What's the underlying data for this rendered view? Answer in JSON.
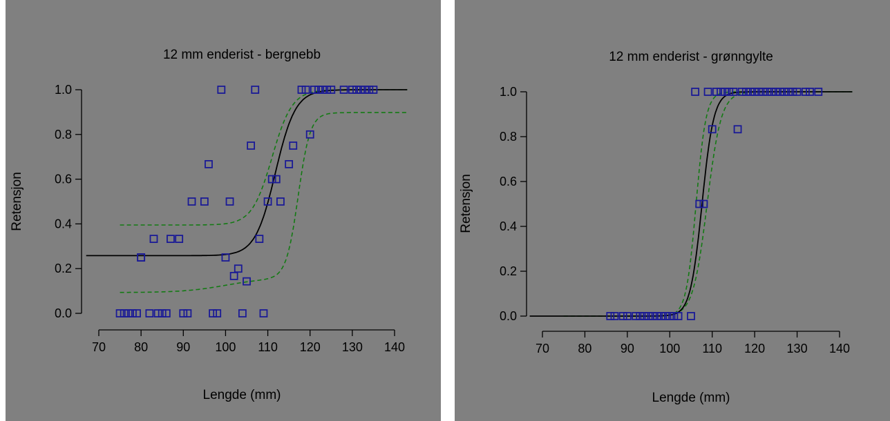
{
  "chart_data": [
    {
      "type": "scatter",
      "title": "12 mm enderist - bergnebb",
      "xlabel": "Lengde (mm)",
      "ylabel": "Retensjon",
      "xlim": [
        70,
        140
      ],
      "ylim": [
        0,
        1
      ],
      "xticks": [
        70,
        80,
        90,
        100,
        110,
        120,
        130,
        140
      ],
      "yticks": [
        "0.0",
        "0.2",
        "0.4",
        "0.6",
        "0.8",
        "1.0"
      ],
      "points": [
        [
          75,
          0
        ],
        [
          76,
          0
        ],
        [
          77,
          0
        ],
        [
          78,
          0
        ],
        [
          79,
          0
        ],
        [
          82,
          0
        ],
        [
          84,
          0
        ],
        [
          85,
          0
        ],
        [
          86,
          0
        ],
        [
          90,
          0
        ],
        [
          91,
          0
        ],
        [
          97,
          0
        ],
        [
          98,
          0
        ],
        [
          104,
          0
        ],
        [
          109,
          0
        ],
        [
          80,
          0.25
        ],
        [
          80,
          0.25
        ],
        [
          83,
          0.333
        ],
        [
          87,
          0.333
        ],
        [
          89,
          0.333
        ],
        [
          92,
          0.5
        ],
        [
          95,
          0.5
        ],
        [
          101,
          0.5
        ],
        [
          110,
          0.5
        ],
        [
          113,
          0.5
        ],
        [
          96,
          0.667
        ],
        [
          106,
          0.75
        ],
        [
          111,
          0.6
        ],
        [
          112,
          0.6
        ],
        [
          115,
          0.667
        ],
        [
          116,
          0.75
        ],
        [
          120,
          0.8
        ],
        [
          99,
          1
        ],
        [
          107,
          1
        ],
        [
          100,
          0.25
        ],
        [
          102,
          0.167
        ],
        [
          103,
          0.2
        ],
        [
          105,
          0.143
        ],
        [
          108,
          0.333
        ],
        [
          118,
          1
        ],
        [
          119,
          1
        ],
        [
          121,
          1
        ],
        [
          122,
          1
        ],
        [
          123,
          1
        ],
        [
          124,
          1
        ],
        [
          125,
          1
        ],
        [
          128,
          1
        ],
        [
          130,
          1
        ],
        [
          131,
          1
        ],
        [
          132,
          1
        ],
        [
          133,
          1
        ],
        [
          134,
          1
        ],
        [
          135,
          1
        ]
      ],
      "fit": {
        "lower": 0.258,
        "upper": 1.0,
        "l50": 111.8,
        "slope": 0.42,
        "x_range": [
          67,
          143
        ]
      },
      "ci_upper": {
        "lower": 0.395,
        "upper": 1.0,
        "l50": 111.0,
        "slope": 0.42,
        "x_range": [
          75,
          143
        ]
      },
      "ci_lower": {
        "x_range": [
          75,
          143
        ],
        "components": [
          {
            "weight": 0.065,
            "l50": 100.0,
            "slope": 0.2
          },
          {
            "weight": 0.74,
            "l50": 117.2,
            "slope": 0.7
          }
        ],
        "base": 0.093
      },
      "series_colors": {
        "points": "#1a1a96",
        "fit": "#000000",
        "ci": "#137a13"
      }
    },
    {
      "type": "scatter",
      "title": "12 mm enderist - grønngylte",
      "xlabel": "Lengde (mm)",
      "ylabel": "Retensjon",
      "xlim": [
        70,
        140
      ],
      "ylim": [
        0,
        1
      ],
      "xticks": [
        70,
        80,
        90,
        100,
        110,
        120,
        130,
        140
      ],
      "yticks": [
        "0.0",
        "0.2",
        "0.4",
        "0.6",
        "0.8",
        "1.0"
      ],
      "points": [
        [
          86,
          0
        ],
        [
          87,
          0
        ],
        [
          89,
          0
        ],
        [
          90,
          0
        ],
        [
          92,
          0
        ],
        [
          93,
          0
        ],
        [
          94,
          0
        ],
        [
          95,
          0
        ],
        [
          96,
          0
        ],
        [
          97,
          0
        ],
        [
          98,
          0
        ],
        [
          99,
          0
        ],
        [
          100,
          0
        ],
        [
          101,
          0
        ],
        [
          102,
          0
        ],
        [
          105,
          0
        ],
        [
          107,
          0.5
        ],
        [
          108,
          0.5
        ],
        [
          110,
          0.833
        ],
        [
          116,
          0.833
        ],
        [
          106,
          1
        ],
        [
          109,
          1
        ],
        [
          111,
          1
        ],
        [
          112,
          1
        ],
        [
          113,
          1
        ],
        [
          114,
          1
        ],
        [
          115,
          1
        ],
        [
          117,
          1
        ],
        [
          118,
          1
        ],
        [
          119,
          1
        ],
        [
          120,
          1
        ],
        [
          121,
          1
        ],
        [
          122,
          1
        ],
        [
          123,
          1
        ],
        [
          124,
          1
        ],
        [
          125,
          1
        ],
        [
          126,
          1
        ],
        [
          127,
          1
        ],
        [
          128,
          1
        ],
        [
          129,
          1
        ],
        [
          130,
          1
        ],
        [
          132,
          1
        ],
        [
          133,
          1
        ],
        [
          135,
          1
        ]
      ],
      "fit": {
        "lower": 0.0,
        "upper": 1.0,
        "l50": 107.6,
        "slope": 0.72,
        "x_range": [
          67,
          143
        ]
      },
      "ci_upper": {
        "lower": 0.0,
        "upper": 1.0,
        "l50": 106.2,
        "slope": 0.85,
        "x_range": [
          75,
          143
        ]
      },
      "ci_lower": {
        "lower": 0.0,
        "upper": 1.0,
        "l50": 108.8,
        "slope": 0.6,
        "x_range": [
          75,
          143
        ]
      },
      "series_colors": {
        "points": "#1a1a96",
        "fit": "#000000",
        "ci": "#137a13"
      }
    }
  ]
}
